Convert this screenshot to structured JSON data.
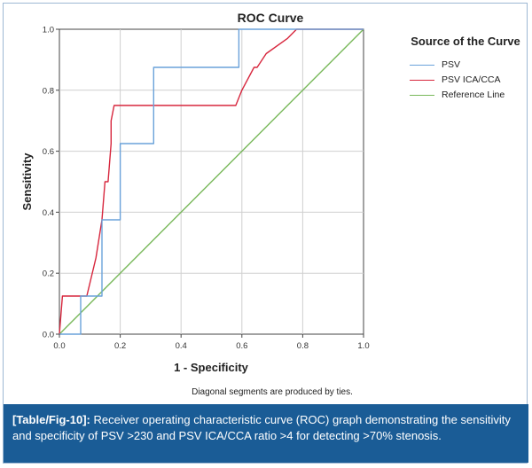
{
  "chart_data": {
    "type": "line",
    "title": "ROC Curve",
    "xlabel": "1 - Specificity",
    "ylabel": "Sensitivity",
    "xlim": [
      0,
      1
    ],
    "ylim": [
      0,
      1
    ],
    "xticks": [
      "0.0",
      "0.2",
      "0.4",
      "0.6",
      "0.8",
      "1.0"
    ],
    "yticks": [
      "0.0",
      "0.2",
      "0.4",
      "0.6",
      "0.8",
      "1.0"
    ],
    "grid": true,
    "legend_position": "right",
    "legend_title": "Source of the Curve",
    "note": "Diagonal segments are produced by ties.",
    "series": [
      {
        "name": "PSV",
        "color": "#6aa2da",
        "x": [
          0,
          0.07,
          0.07,
          0.14,
          0.14,
          0.2,
          0.2,
          0.31,
          0.31,
          0.59,
          0.59,
          0.78,
          1.0
        ],
        "y": [
          0,
          0,
          0.125,
          0.125,
          0.375,
          0.375,
          0.625,
          0.625,
          0.875,
          0.875,
          1.0,
          1.0,
          1.0
        ]
      },
      {
        "name": "PSV ICA/CCA",
        "color": "#d7263d",
        "x": [
          0,
          0.01,
          0.09,
          0.12,
          0.14,
          0.15,
          0.16,
          0.17,
          0.17,
          0.18,
          0.58,
          0.6,
          0.64,
          0.65,
          0.68,
          0.75,
          0.78,
          1.0
        ],
        "y": [
          0,
          0.125,
          0.125,
          0.25,
          0.375,
          0.5,
          0.5,
          0.625,
          0.7,
          0.75,
          0.75,
          0.8,
          0.875,
          0.875,
          0.92,
          0.97,
          1.0,
          1.0
        ]
      },
      {
        "name": "Reference Line",
        "color": "#78b85a",
        "x": [
          0,
          1
        ],
        "y": [
          0,
          1
        ]
      }
    ]
  },
  "caption": {
    "label": "[Table/Fig-10]:",
    "text": " Receiver operating characteristic curve (ROC) graph demonstrating the sensitivity and specificity of PSV >230 and PSV ICA/CCA ratio >4 for detecting >70% stenosis."
  }
}
